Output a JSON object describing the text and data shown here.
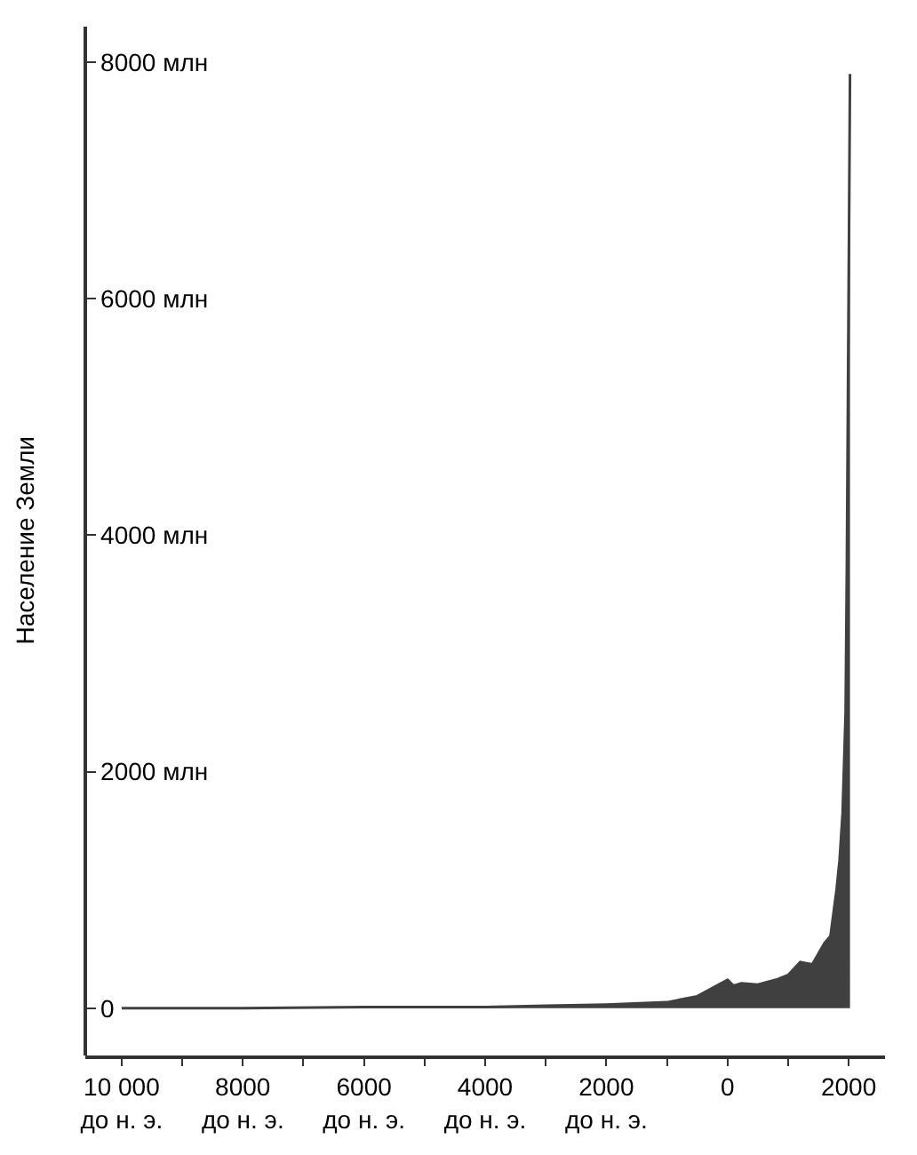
{
  "chart_data": {
    "type": "area",
    "ylabel": "Население Земли",
    "x": [
      -10000,
      -8000,
      -6000,
      -4000,
      -3000,
      -2000,
      -1000,
      -500,
      1,
      100,
      230,
      500,
      800,
      1000,
      1200,
      1400,
      1600,
      1700,
      1800,
      1850,
      1900,
      1950,
      1970,
      1990,
      2000,
      2010,
      2022
    ],
    "series": [
      {
        "color": "#404040",
        "values": [
          0,
          0,
          10,
          10,
          20,
          30,
          50,
          100,
          240,
          190,
          210,
          200,
          240,
          280,
          390,
          370,
          550,
          610,
          1000,
          1250,
          1650,
          2500,
          3700,
          5300,
          6100,
          6900,
          7900
        ]
      }
    ],
    "xlim": [
      -10600,
      2600
    ],
    "ylim": [
      -400,
      8300
    ],
    "xticks": [
      {
        "value": -10000,
        "label": "10 000\nдо н. э."
      },
      {
        "value": -9000,
        "label": null
      },
      {
        "value": -8000,
        "label": "8000\nдо н. э."
      },
      {
        "value": -7000,
        "label": null
      },
      {
        "value": -6000,
        "label": "6000\nдо н. э."
      },
      {
        "value": -5000,
        "label": null
      },
      {
        "value": -4000,
        "label": "4000\nдо н. э."
      },
      {
        "value": -3000,
        "label": null
      },
      {
        "value": -2000,
        "label": "2000\nдо н. э."
      },
      {
        "value": -1000,
        "label": null
      },
      0,
      {
        "value": 1000,
        "label": null
      },
      2000
    ],
    "yticks": [
      0,
      {
        "value": 2000,
        "label": "2000 млн"
      },
      {
        "value": 4000,
        "label": "4000 млн"
      },
      {
        "value": 6000,
        "label": "6000 млн"
      },
      {
        "value": 8000,
        "label": "8000 млн"
      }
    ]
  }
}
